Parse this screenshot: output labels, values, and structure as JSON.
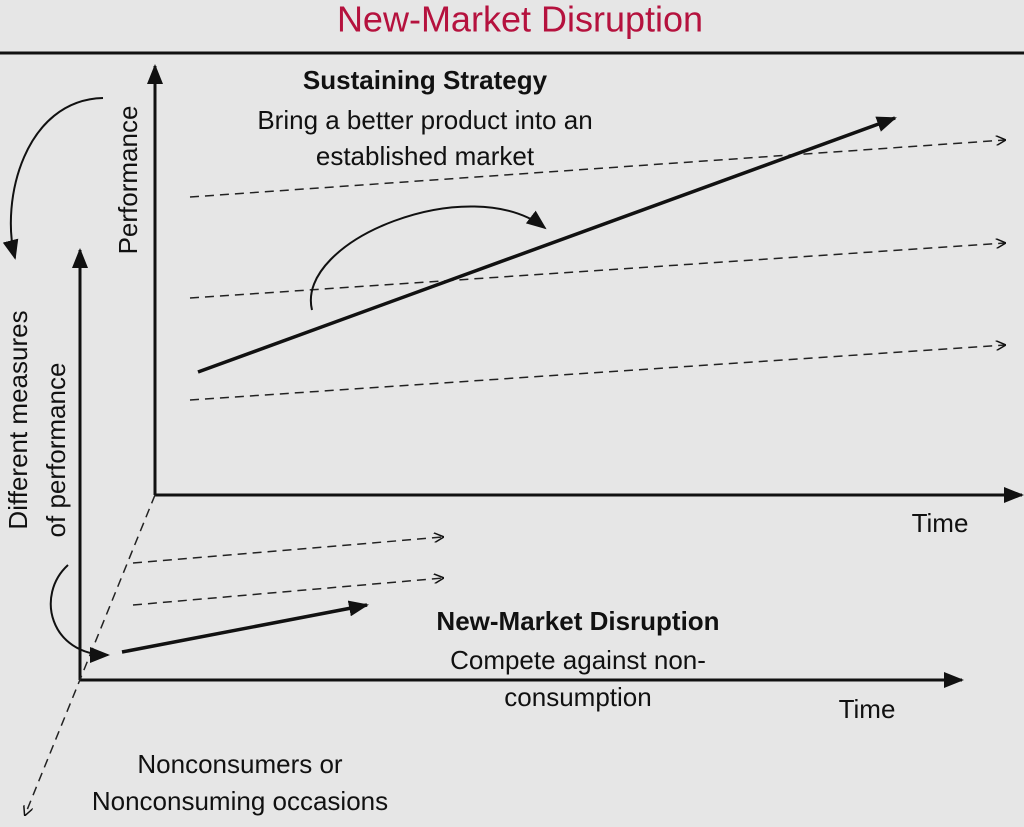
{
  "header": {
    "title": "New-Market Disruption"
  },
  "sustaining": {
    "y_axis": "Performance",
    "x_axis": "Time",
    "heading": "Sustaining Strategy",
    "description": [
      "Bring a better product into an",
      "established market"
    ]
  },
  "new_market": {
    "y_axis": [
      "Different measures",
      "of performance"
    ],
    "x_axis": "Time",
    "heading": "New-Market Disruption",
    "description": [
      "Compete against non-",
      "consumption"
    ]
  },
  "depth_axis": [
    "Nonconsumers or",
    "Nonconsuming occasions"
  ]
}
